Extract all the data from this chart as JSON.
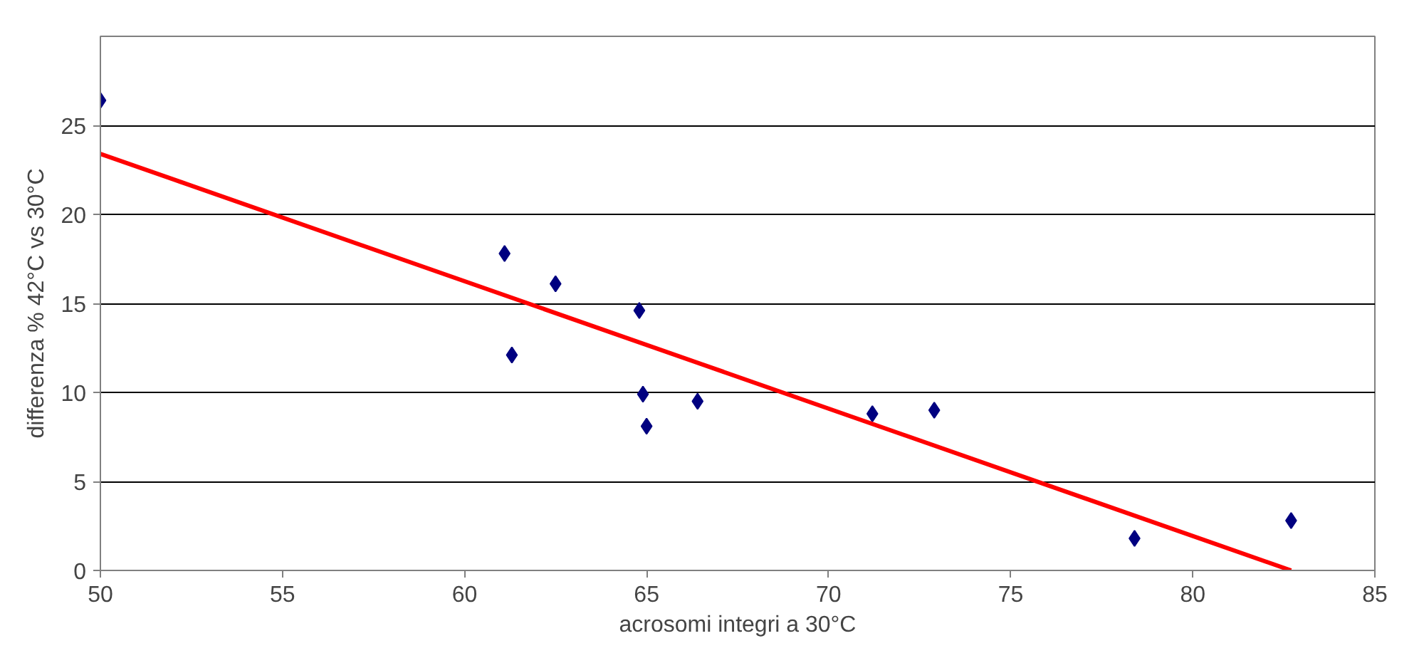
{
  "chart_data": {
    "type": "scatter",
    "xlabel": "acrosomi integri a 30°C",
    "ylabel": "differenza % 42°C vs 30°C",
    "xlim": [
      50,
      85
    ],
    "xticks": [
      50,
      55,
      60,
      65,
      70,
      75,
      80,
      85
    ],
    "ylim": [
      0,
      30
    ],
    "yticks": [
      0,
      5,
      10,
      15,
      20,
      25
    ],
    "grid": "y",
    "marker": "diamond",
    "series": [
      {
        "color": "#000080",
        "x": [
          50,
          61.1,
          61.3,
          62.5,
          64.8,
          64.9,
          65.0,
          66.4,
          71.2,
          72.9,
          78.4,
          82.7
        ],
        "values": [
          26.4,
          17.8,
          12.1,
          16.1,
          14.6,
          9.9,
          8.1,
          9.5,
          8.8,
          9.0,
          1.8,
          2.8
        ]
      },
      {
        "type": "line",
        "color": "#ff0000",
        "marker": "none",
        "x": [
          50,
          82.7
        ],
        "values": [
          23.4,
          0
        ]
      }
    ]
  }
}
